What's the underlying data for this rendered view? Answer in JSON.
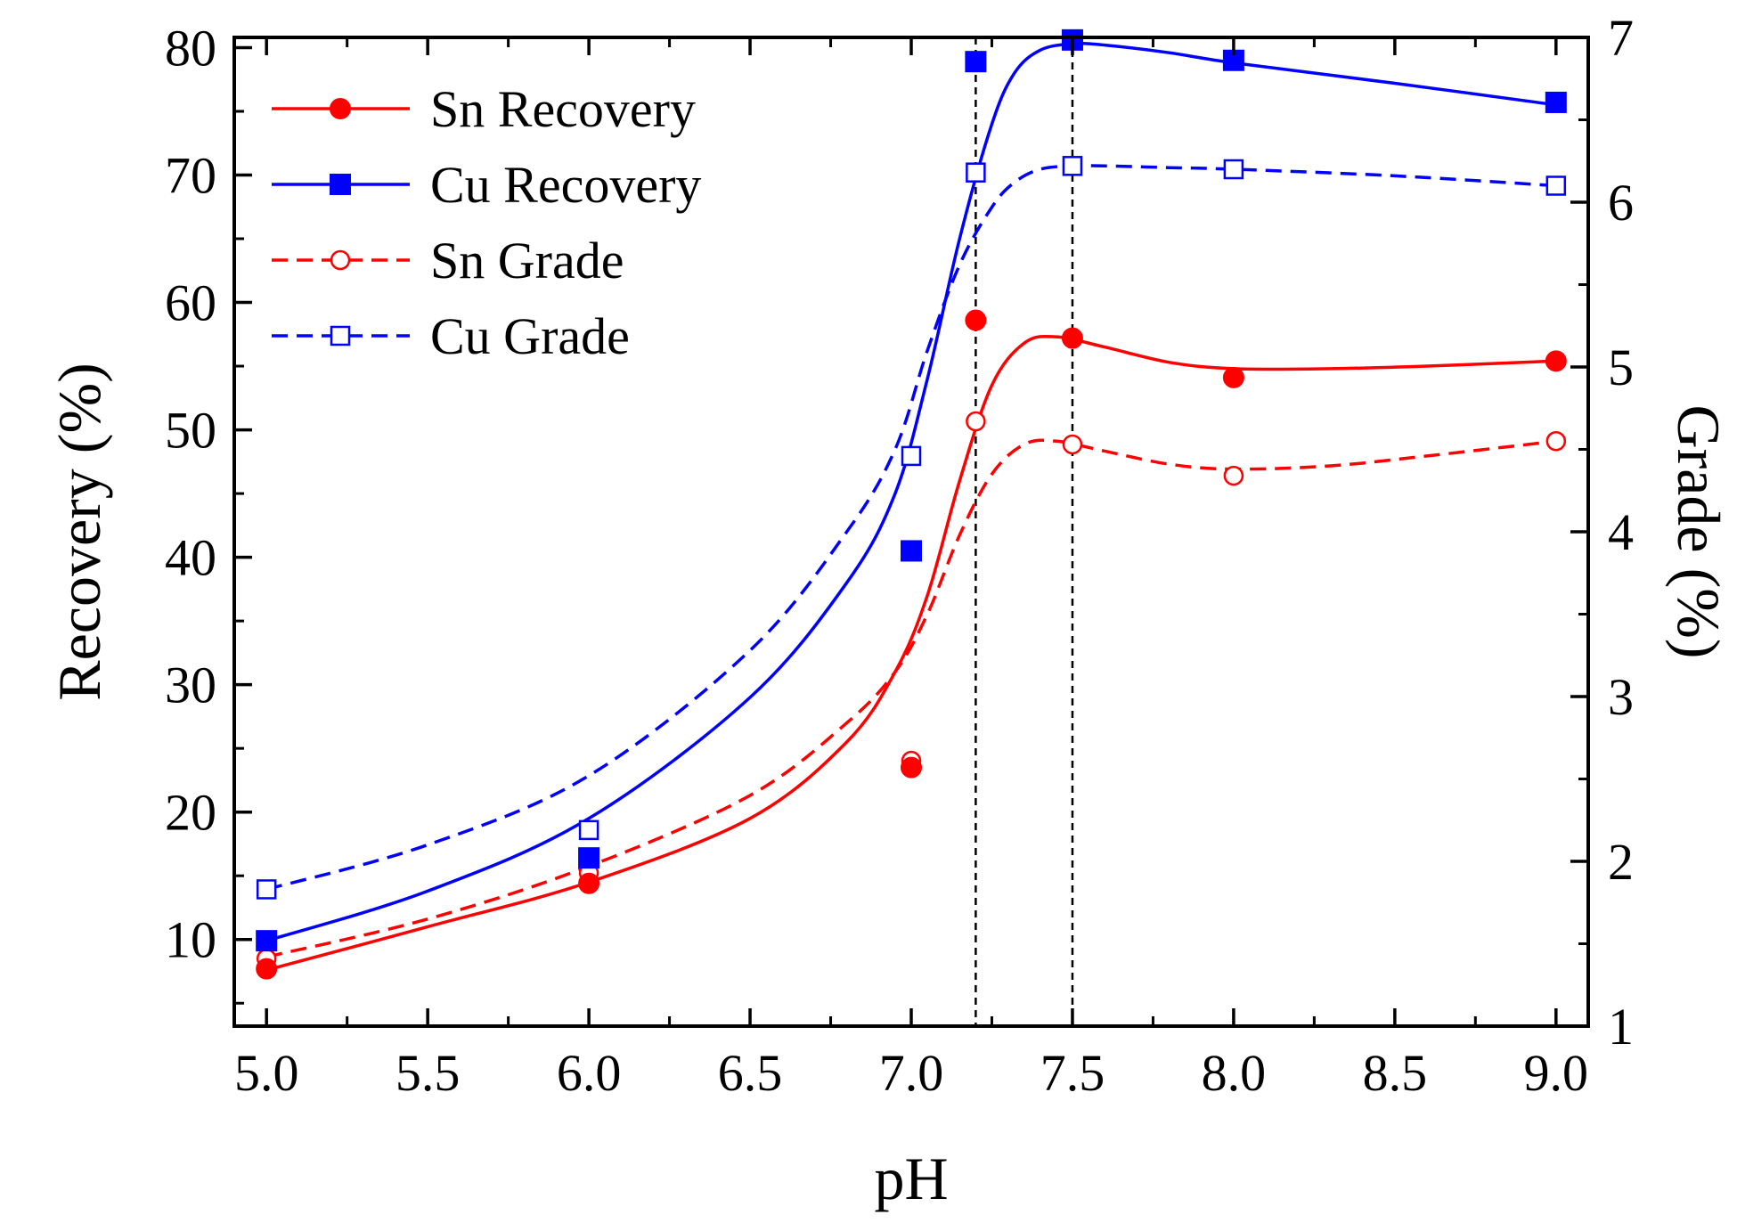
{
  "chart_data": {
    "type": "line",
    "title": "",
    "xlabel": "pH",
    "ylabel": "Recovery (%)",
    "y2label": "Grade (%)",
    "xlim": [
      4.9,
      9.1
    ],
    "ylim": [
      3.2,
      80.8
    ],
    "y2lim": [
      1,
      7
    ],
    "xticks": [
      5.0,
      5.5,
      6.0,
      6.5,
      7.0,
      7.5,
      8.0,
      8.5,
      9.0
    ],
    "xtick_labels": [
      "5.0",
      "5.5",
      "6.0",
      "6.5",
      "7.0",
      "7.5",
      "8.0",
      "8.5",
      "9.0"
    ],
    "yticks": [
      10,
      20,
      30,
      40,
      50,
      60,
      70,
      80
    ],
    "ytick_labels": [
      "10",
      "20",
      "30",
      "40",
      "50",
      "60",
      "70",
      "80"
    ],
    "y2ticks": [
      1,
      2,
      3,
      4,
      5,
      6,
      7
    ],
    "y2tick_labels": [
      "1",
      "2",
      "3",
      "4",
      "5",
      "6",
      "7"
    ],
    "vlines": [
      7.2,
      7.5
    ],
    "legend_position": "top-left",
    "series": [
      {
        "name": "Sn Recovery",
        "axis": "left",
        "color": "#ff0000",
        "dash": "solid",
        "marker": "filled-circle",
        "x": [
          5.0,
          6.0,
          7.0,
          7.2,
          7.5,
          8.0,
          9.0
        ],
        "values": [
          7.7,
          14.4,
          23.5,
          58.6,
          57.2,
          54.1,
          55.4
        ],
        "fit_x": [
          5.0,
          5.5,
          6.0,
          6.5,
          6.8,
          6.95,
          7.05,
          7.15,
          7.25,
          7.35,
          7.45,
          7.6,
          7.8,
          8.0,
          8.3,
          8.6,
          9.0
        ],
        "fit_y": [
          7.6,
          11.0,
          14.5,
          19.5,
          25.5,
          31.0,
          37.0,
          46.0,
          53.5,
          56.8,
          57.3,
          56.5,
          55.3,
          54.8,
          54.8,
          55.0,
          55.4
        ]
      },
      {
        "name": "Cu Recovery",
        "axis": "left",
        "color": "#0000ff",
        "dash": "solid",
        "marker": "filled-square",
        "x": [
          5.0,
          6.0,
          7.0,
          7.2,
          7.5,
          8.0,
          9.0
        ],
        "values": [
          9.9,
          16.4,
          40.5,
          78.9,
          80.6,
          79.0,
          75.7
        ],
        "fit_x": [
          5.0,
          5.5,
          6.0,
          6.5,
          6.8,
          6.95,
          7.05,
          7.15,
          7.25,
          7.32,
          7.4,
          7.5,
          7.6,
          7.8,
          8.0,
          8.5,
          9.0
        ],
        "fit_y": [
          9.9,
          13.8,
          19.5,
          29.0,
          38.0,
          45.0,
          54.0,
          65.0,
          74.0,
          78.0,
          79.8,
          80.3,
          80.2,
          79.6,
          78.8,
          77.2,
          75.5
        ]
      },
      {
        "name": "Sn Grade",
        "axis": "right",
        "color": "#ff0000",
        "dash": "dashed",
        "marker": "open-circle",
        "x": [
          5.0,
          6.0,
          7.0,
          7.2,
          7.5,
          8.0,
          9.0
        ],
        "values": [
          1.41,
          1.93,
          2.61,
          4.67,
          4.53,
          4.34,
          4.55
        ],
        "fit_x": [
          5.0,
          5.5,
          6.0,
          6.5,
          6.8,
          6.95,
          7.05,
          7.15,
          7.25,
          7.35,
          7.45,
          7.6,
          7.8,
          8.0,
          8.3,
          8.6,
          9.0
        ],
        "fit_y": [
          1.42,
          1.65,
          1.97,
          2.4,
          2.84,
          3.15,
          3.5,
          3.98,
          4.35,
          4.53,
          4.55,
          4.49,
          4.41,
          4.38,
          4.4,
          4.46,
          4.55
        ]
      },
      {
        "name": "Cu Grade",
        "axis": "right",
        "color": "#0000ff",
        "dash": "dashed",
        "marker": "open-square",
        "x": [
          5.0,
          6.0,
          7.0,
          7.2,
          7.5,
          8.0,
          9.0
        ],
        "values": [
          1.83,
          2.19,
          4.46,
          6.18,
          6.22,
          6.2,
          6.1
        ],
        "fit_x": [
          5.0,
          5.5,
          6.0,
          6.5,
          6.8,
          6.95,
          7.05,
          7.15,
          7.25,
          7.32,
          7.4,
          7.5,
          7.6,
          7.8,
          8.0,
          8.5,
          9.0
        ],
        "fit_y": [
          1.83,
          2.1,
          2.52,
          3.28,
          4.0,
          4.5,
          5.1,
          5.62,
          5.97,
          6.12,
          6.2,
          6.22,
          6.22,
          6.21,
          6.2,
          6.16,
          6.1
        ]
      }
    ]
  }
}
